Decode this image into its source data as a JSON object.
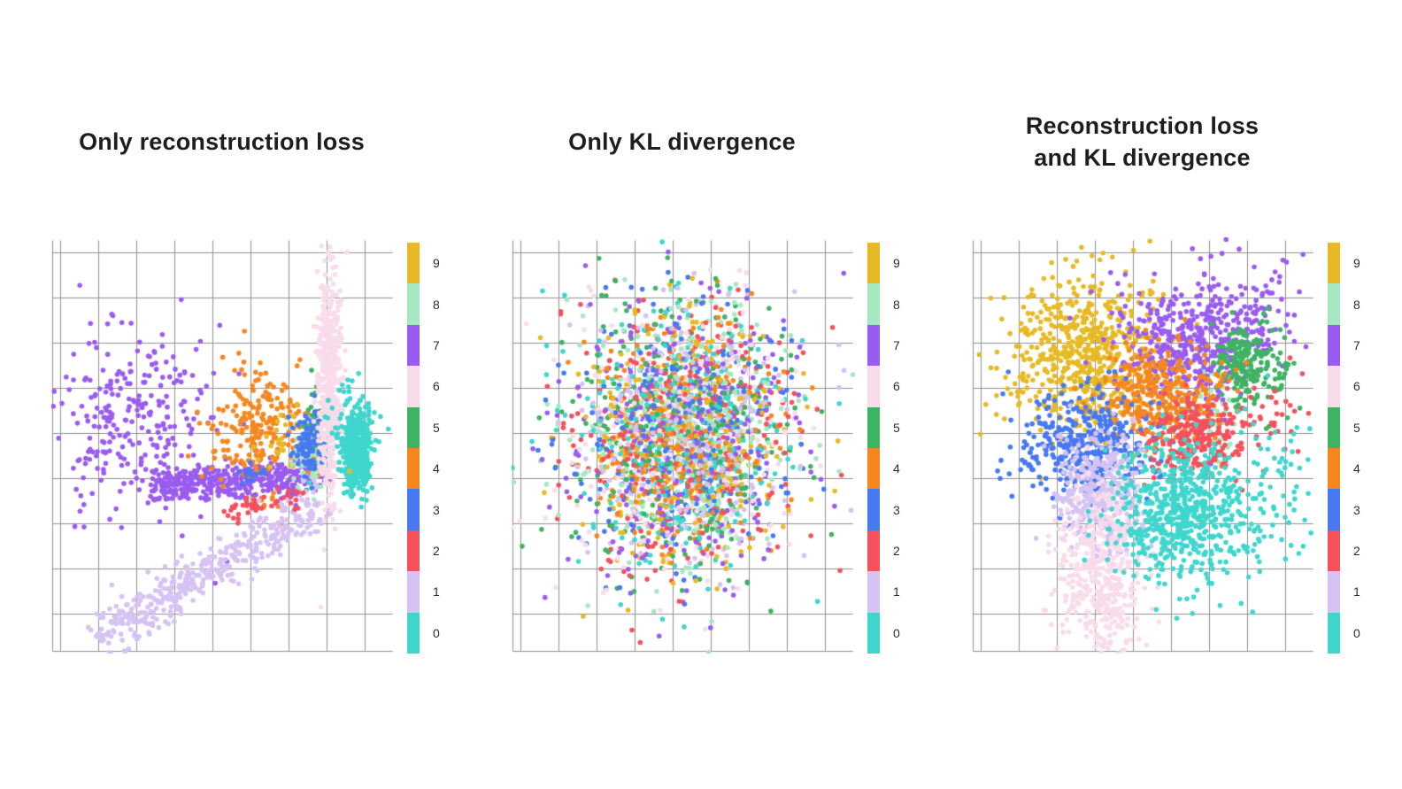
{
  "page": {
    "background": "#ffffff",
    "grid_color": "#8f8f8f"
  },
  "class_colors": {
    "0": "#3fd6cd",
    "1": "#d6c3f3",
    "2": "#f4515d",
    "3": "#4679f2",
    "4": "#f6871f",
    "5": "#3eb463",
    "6": "#f9dcea",
    "7": "#9a5cf0",
    "8": "#a6e9c1",
    "9": "#e7ba25"
  },
  "colorbar": {
    "entries": [
      {
        "label": "9",
        "color": "#e7ba25"
      },
      {
        "label": "8",
        "color": "#a6e9c1"
      },
      {
        "label": "7",
        "color": "#9a5cf0"
      },
      {
        "label": "6",
        "color": "#f9dcea"
      },
      {
        "label": "5",
        "color": "#3eb463"
      },
      {
        "label": "4",
        "color": "#f6871f"
      },
      {
        "label": "3",
        "color": "#4679f2"
      },
      {
        "label": "2",
        "color": "#f4515d"
      },
      {
        "label": "1",
        "color": "#d6c3f3"
      },
      {
        "label": "0",
        "color": "#3fd6cd"
      }
    ]
  },
  "chart_data": [
    {
      "type": "scatter",
      "title": "Only reconstruction loss",
      "legend": {
        "position": "right-colorbar",
        "classes": [
          "0",
          "1",
          "2",
          "3",
          "4",
          "5",
          "6",
          "7",
          "8",
          "9"
        ]
      },
      "axes": {
        "tick_labels_visible": false,
        "grid": true
      },
      "seed": 11,
      "shuffle": false,
      "point_radius": 2.8,
      "clusters": [
        {
          "class": 7,
          "type": "gauss",
          "cx": 0.24,
          "cy": 0.44,
          "sx": 0.115,
          "sy": 0.115,
          "n": 270
        },
        {
          "class": 7,
          "type": "line",
          "x1": 0.3,
          "y1": 0.605,
          "x2": 0.79,
          "y2": 0.575,
          "jitter": 0.022,
          "n": 420
        },
        {
          "class": 4,
          "type": "gauss",
          "cx": 0.6,
          "cy": 0.47,
          "sx": 0.075,
          "sy": 0.075,
          "n": 220
        },
        {
          "class": 9,
          "type": "gauss",
          "cx": 0.665,
          "cy": 0.5,
          "sx": 0.035,
          "sy": 0.035,
          "n": 28
        },
        {
          "class": 5,
          "type": "gauss",
          "cx": 0.765,
          "cy": 0.47,
          "sx": 0.016,
          "sy": 0.05,
          "n": 60
        },
        {
          "class": 8,
          "type": "gauss",
          "cx": 0.755,
          "cy": 0.54,
          "sx": 0.025,
          "sy": 0.04,
          "n": 80
        },
        {
          "class": 3,
          "type": "gauss",
          "cx": 0.755,
          "cy": 0.49,
          "sx": 0.027,
          "sy": 0.04,
          "n": 110
        },
        {
          "class": 3,
          "type": "gauss",
          "cx": 0.6,
          "cy": 0.575,
          "sx": 0.03,
          "sy": 0.015,
          "n": 15
        },
        {
          "class": 1,
          "type": "line",
          "x1": 0.135,
          "y1": 0.97,
          "x2": 0.79,
          "y2": 0.645,
          "jitter": 0.03,
          "n": 450
        },
        {
          "class": 2,
          "type": "line",
          "x1": 0.52,
          "y1": 0.675,
          "x2": 0.74,
          "y2": 0.615,
          "jitter": 0.012,
          "n": 42
        },
        {
          "class": 6,
          "type": "gauss",
          "cx": 0.815,
          "cy": 0.36,
          "sx": 0.018,
          "sy": 0.14,
          "n": 520
        },
        {
          "class": 0,
          "type": "gauss",
          "cx": 0.895,
          "cy": 0.52,
          "sx": 0.021,
          "sy": 0.048,
          "n": 480
        },
        {
          "class": 0,
          "type": "gauss",
          "cx": 0.875,
          "cy": 0.44,
          "sx": 0.04,
          "sy": 0.06,
          "n": 45
        },
        {
          "class": 9,
          "type": "points",
          "pts": [
            [
              0.875,
              0.565
            ]
          ]
        }
      ]
    },
    {
      "type": "scatter",
      "title": "Only KL divergence",
      "legend": {
        "position": "right-colorbar",
        "classes": [
          "0",
          "1",
          "2",
          "3",
          "4",
          "5",
          "6",
          "7",
          "8",
          "9"
        ]
      },
      "axes": {
        "tick_labels_visible": false,
        "grid": true
      },
      "seed": 22,
      "shuffle": true,
      "point_radius": 2.8,
      "clusters": [
        {
          "class": 8,
          "type": "gauss",
          "cx": 0.5,
          "cy": 0.48,
          "sx": 0.16,
          "sy": 0.16,
          "n": 300
        },
        {
          "class": 6,
          "type": "gauss",
          "cx": 0.5,
          "cy": 0.48,
          "sx": 0.17,
          "sy": 0.17,
          "n": 300
        },
        {
          "class": 1,
          "type": "gauss",
          "cx": 0.5,
          "cy": 0.48,
          "sx": 0.16,
          "sy": 0.16,
          "n": 300
        },
        {
          "class": 7,
          "type": "gauss",
          "cx": 0.5,
          "cy": 0.48,
          "sx": 0.17,
          "sy": 0.17,
          "n": 300
        },
        {
          "class": 9,
          "type": "gauss",
          "cx": 0.5,
          "cy": 0.48,
          "sx": 0.16,
          "sy": 0.16,
          "n": 300
        },
        {
          "class": 5,
          "type": "gauss",
          "cx": 0.5,
          "cy": 0.48,
          "sx": 0.17,
          "sy": 0.17,
          "n": 300
        },
        {
          "class": 0,
          "type": "gauss",
          "cx": 0.5,
          "cy": 0.48,
          "sx": 0.16,
          "sy": 0.16,
          "n": 300
        },
        {
          "class": 3,
          "type": "gauss",
          "cx": 0.5,
          "cy": 0.48,
          "sx": 0.155,
          "sy": 0.155,
          "n": 300
        },
        {
          "class": 2,
          "type": "gauss",
          "cx": 0.5,
          "cy": 0.48,
          "sx": 0.19,
          "sy": 0.18,
          "n": 300
        },
        {
          "class": 4,
          "type": "gauss",
          "cx": 0.5,
          "cy": 0.48,
          "sx": 0.13,
          "sy": 0.14,
          "n": 300
        }
      ]
    },
    {
      "type": "scatter",
      "title": "Reconstruction loss\nand KL divergence",
      "legend": {
        "position": "right-colorbar",
        "classes": [
          "0",
          "1",
          "2",
          "3",
          "4",
          "5",
          "6",
          "7",
          "8",
          "9"
        ]
      },
      "axes": {
        "tick_labels_visible": false,
        "grid": true
      },
      "seed": 33,
      "shuffle": false,
      "point_radius": 2.8,
      "clusters": [
        {
          "class": 8,
          "type": "gauss",
          "cx": 0.7,
          "cy": 0.42,
          "sx": 0.05,
          "sy": 0.05,
          "n": 60
        },
        {
          "class": 9,
          "type": "gauss",
          "cx": 0.33,
          "cy": 0.28,
          "sx": 0.115,
          "sy": 0.095,
          "n": 600
        },
        {
          "class": 9,
          "type": "points",
          "pts": [
            [
              0.52,
              0.005
            ]
          ]
        },
        {
          "class": 7,
          "type": "gauss",
          "cx": 0.64,
          "cy": 0.25,
          "sx": 0.105,
          "sy": 0.078,
          "n": 450
        },
        {
          "class": 7,
          "type": "gauss",
          "cx": 0.85,
          "cy": 0.17,
          "sx": 0.06,
          "sy": 0.05,
          "n": 50
        },
        {
          "class": 5,
          "type": "gauss",
          "cx": 0.8,
          "cy": 0.3,
          "sx": 0.045,
          "sy": 0.05,
          "n": 160
        },
        {
          "class": 5,
          "type": "gauss",
          "cx": 0.88,
          "cy": 0.33,
          "sx": 0.04,
          "sy": 0.05,
          "n": 40
        },
        {
          "class": 4,
          "type": "gauss",
          "cx": 0.55,
          "cy": 0.38,
          "sx": 0.09,
          "sy": 0.058,
          "n": 350
        },
        {
          "class": 3,
          "type": "gauss",
          "cx": 0.33,
          "cy": 0.5,
          "sx": 0.1,
          "sy": 0.07,
          "n": 400
        },
        {
          "class": 1,
          "type": "gauss",
          "cx": 0.37,
          "cy": 0.62,
          "sx": 0.065,
          "sy": 0.07,
          "n": 350
        },
        {
          "class": 2,
          "type": "gauss",
          "cx": 0.67,
          "cy": 0.48,
          "sx": 0.07,
          "sy": 0.045,
          "n": 250
        },
        {
          "class": 2,
          "type": "gauss",
          "cx": 0.88,
          "cy": 0.45,
          "sx": 0.05,
          "sy": 0.06,
          "n": 25
        },
        {
          "class": 6,
          "type": "gauss",
          "cx": 0.38,
          "cy": 0.79,
          "sx": 0.065,
          "sy": 0.1,
          "n": 400
        },
        {
          "class": 6,
          "type": "gauss",
          "cx": 0.4,
          "cy": 0.92,
          "sx": 0.05,
          "sy": 0.06,
          "n": 60
        },
        {
          "class": 0,
          "type": "gauss",
          "cx": 0.62,
          "cy": 0.67,
          "sx": 0.1,
          "sy": 0.09,
          "n": 600
        },
        {
          "class": 0,
          "type": "gauss",
          "cx": 0.85,
          "cy": 0.62,
          "sx": 0.08,
          "sy": 0.11,
          "n": 80
        }
      ]
    }
  ]
}
